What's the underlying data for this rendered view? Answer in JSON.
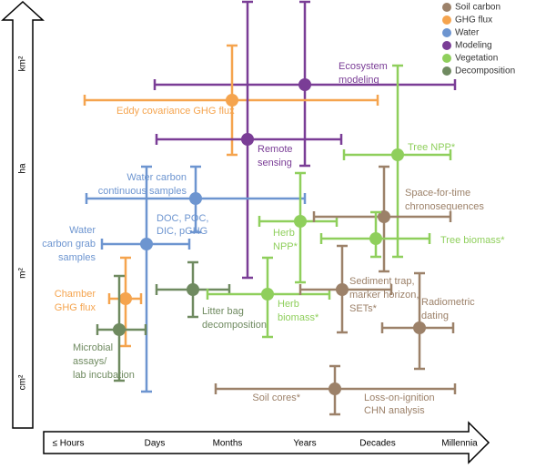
{
  "legend": [
    {
      "name": "Soil carbon",
      "color": "#9c8169"
    },
    {
      "name": "GHG flux",
      "color": "#f5a44e"
    },
    {
      "name": "Water",
      "color": "#6d95d0"
    },
    {
      "name": "Modeling",
      "color": "#7a3d96"
    },
    {
      "name": "Vegetation",
      "color": "#8fcf5c"
    },
    {
      "name": "Decomposition",
      "color": "#6f8a60"
    }
  ],
  "y_axis": [
    "km²",
    "ha",
    "m²",
    "cm²"
  ],
  "x_axis": [
    "≤ Hours",
    "Days",
    "Months",
    "Years",
    "Decades",
    "Millennia"
  ],
  "methods": [
    {
      "group": "Modeling",
      "label": [
        "Ecosystem",
        "modeling"
      ]
    },
    {
      "group": "GHG flux",
      "label": [
        "Eddy covariance GHG flux"
      ]
    },
    {
      "group": "Modeling",
      "label": [
        "Remote",
        "sensing"
      ]
    },
    {
      "group": "Vegetation",
      "label": [
        "Tree NPP*"
      ]
    },
    {
      "group": "Water",
      "label": [
        "Water carbon",
        "continuous samples"
      ]
    },
    {
      "group": "Vegetation",
      "label": [
        "Herb",
        "NPP*"
      ]
    },
    {
      "group": "Soil carbon",
      "label": [
        "Space-for-time",
        "chronosequences"
      ]
    },
    {
      "group": "Vegetation",
      "label": [
        "Tree biomass*"
      ]
    },
    {
      "group": "Water",
      "label": [
        "Water",
        "carbon grab",
        "samples"
      ],
      "note": [
        "DOC, POC,",
        "DIC, pGHG"
      ]
    },
    {
      "group": "GHG flux",
      "label": [
        "Chamber",
        "GHG flux"
      ]
    },
    {
      "group": "Decomposition",
      "label": [
        "Litter bag",
        "decomposition"
      ]
    },
    {
      "group": "Vegetation",
      "label": [
        "Herb",
        "biomass*"
      ]
    },
    {
      "group": "Soil carbon",
      "label": [
        "Sediment trap,",
        "marker horizon,",
        "SETs*"
      ]
    },
    {
      "group": "Soil carbon",
      "label": [
        "Radiometric",
        "dating"
      ]
    },
    {
      "group": "Decomposition",
      "label": [
        "Microbial",
        "assays/",
        "lab incubation"
      ]
    },
    {
      "group": "Soil carbon",
      "label": [
        "Soil cores*"
      ],
      "note": [
        "Loss-on-ignition",
        "CHN analysis"
      ]
    }
  ]
}
